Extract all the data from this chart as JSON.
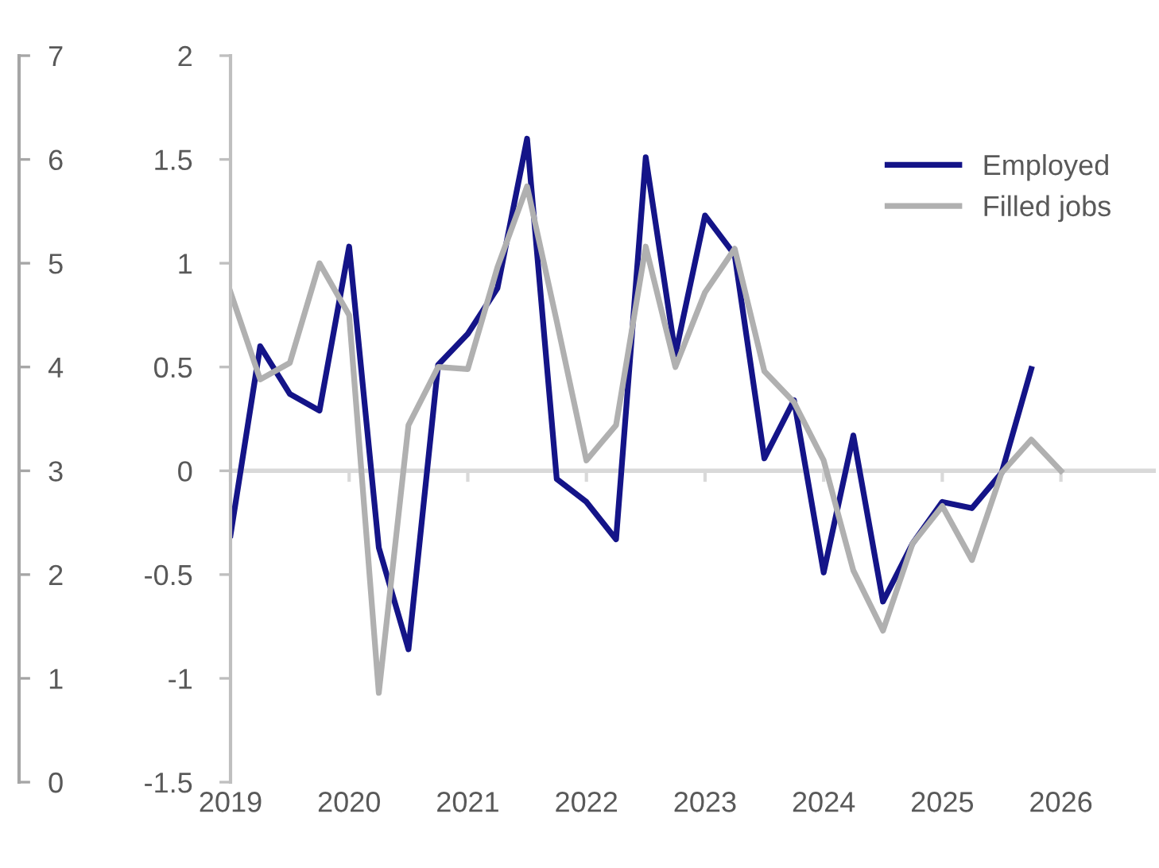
{
  "chart_data": {
    "type": "line",
    "x": [
      2019,
      2019.25,
      2019.5,
      2019.75,
      2020,
      2020.25,
      2020.5,
      2020.75,
      2021,
      2021.25,
      2021.5,
      2021.75,
      2022,
      2022.25,
      2022.5,
      2022.75,
      2023,
      2023.25,
      2023.5,
      2023.75,
      2024,
      2024.25,
      2024.5,
      2024.75,
      2025,
      2025.25,
      2025.5,
      2025.75,
      2026
    ],
    "series": [
      {
        "name": "Employed",
        "color": "#141488",
        "values": [
          -0.31,
          0.6,
          0.37,
          0.29,
          1.08,
          -0.37,
          -0.86,
          0.51,
          0.66,
          0.88,
          1.6,
          -0.04,
          -0.15,
          -0.33,
          1.51,
          0.56,
          1.23,
          1.04,
          0.06,
          0.34,
          -0.49,
          0.17,
          -0.63,
          -0.35,
          -0.15,
          -0.18,
          -0.01,
          0.49,
          null
        ]
      },
      {
        "name": "Filled jobs",
        "color": "#b0b0b0",
        "values": [
          0.86,
          0.44,
          0.52,
          1.0,
          0.75,
          -1.07,
          0.22,
          0.5,
          0.49,
          0.98,
          1.37,
          0.72,
          0.05,
          0.22,
          1.08,
          0.5,
          0.86,
          1.07,
          0.48,
          0.33,
          0.05,
          -0.48,
          -0.77,
          -0.35,
          -0.17,
          -0.43,
          -0.01,
          0.15,
          0
        ]
      }
    ],
    "xlim": [
      2019,
      2026.8
    ],
    "xticks": [
      2019,
      2020,
      2021,
      2022,
      2023,
      2024,
      2025,
      2026
    ],
    "ylim": [
      -1.5,
      2
    ],
    "yticks": [
      -1.5,
      -1,
      -0.5,
      0,
      0.5,
      1,
      1.5,
      2
    ],
    "y2lim": [
      0,
      7
    ],
    "y2ticks": [
      0,
      1,
      2,
      3,
      4,
      5,
      6,
      7
    ],
    "ref_lines": [
      {
        "axis": "y",
        "value": 0,
        "color": "#d9d9d9"
      }
    ],
    "legend": "top right",
    "grid": false,
    "marker": "none",
    "line_style": "solid"
  }
}
